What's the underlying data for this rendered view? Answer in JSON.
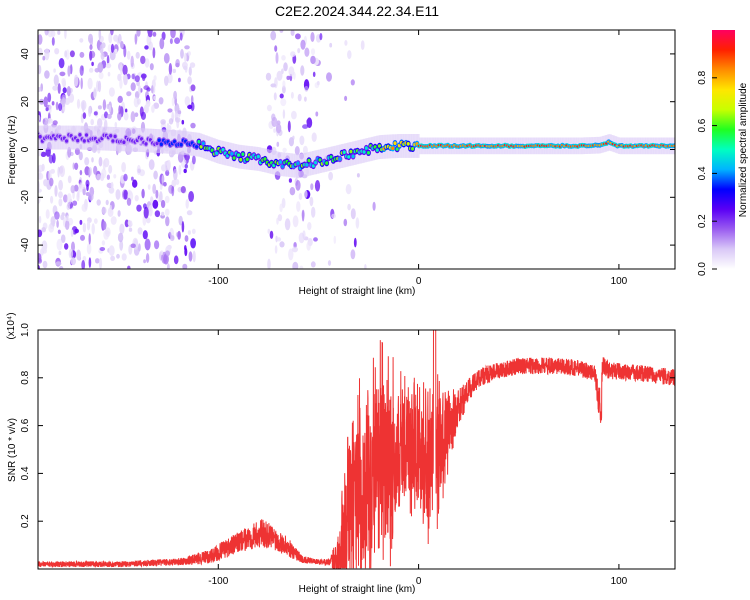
{
  "title": "C2E2.2024.344.22.34.E11",
  "chart_data": [
    {
      "type": "heatmap",
      "xlabel": "Height of straight line (km)",
      "ylabel": "Frequency (Hz)",
      "xlim": [
        -190,
        128
      ],
      "ylim": [
        -50,
        50
      ],
      "xticks": [
        -100,
        0,
        100
      ],
      "yticks": [
        -40,
        -20,
        0,
        20,
        40
      ],
      "grid": false,
      "colorbar": {
        "label": "Normalized spectral amplitude",
        "range": [
          0,
          1
        ],
        "ticks": [
          0.0,
          0.2,
          0.4,
          0.6,
          0.8
        ],
        "colors": [
          "#ffffff",
          "#d9c8f7",
          "#9a5cf0",
          "#5a00f5",
          "#0000ff",
          "#00b4ff",
          "#00ffc0",
          "#20ff20",
          "#c8ff00",
          "#ffe600",
          "#ff8c00",
          "#ff2000",
          "#ff0060"
        ]
      },
      "ridge": [
        [
          -170,
          5
        ],
        [
          -140,
          4
        ],
        [
          -120,
          3
        ],
        [
          -110,
          2
        ],
        [
          -100,
          -1
        ],
        [
          -90,
          -3
        ],
        [
          -80,
          -4
        ],
        [
          -70,
          -6
        ],
        [
          -60,
          -7
        ],
        [
          -50,
          -5
        ],
        [
          -45,
          -4
        ],
        [
          -40,
          -3
        ],
        [
          -35,
          -2
        ],
        [
          -25,
          0
        ],
        [
          -20,
          1
        ],
        [
          -10,
          1.5
        ],
        [
          0,
          1.5
        ],
        [
          20,
          1.5
        ],
        [
          50,
          1.5
        ],
        [
          80,
          1.5
        ],
        [
          90,
          1.8
        ],
        [
          95,
          3
        ],
        [
          100,
          1.5
        ],
        [
          128,
          1.5
        ]
      ]
    },
    {
      "type": "line",
      "xlabel": "Height of straight line (km)",
      "ylabel": "SNR (10 * v/v)",
      "yscale_label": "(x10⁴)",
      "xlim": [
        -190,
        128
      ],
      "ylim": [
        0,
        1.0
      ],
      "xticks": [
        -100,
        0,
        100
      ],
      "yticks": [
        0.2,
        0.4,
        0.6,
        0.8,
        1.0
      ],
      "series": [
        {
          "name": "SNR",
          "color": "#ee3333",
          "x": [
            -190,
            -150,
            -120,
            -105,
            -95,
            -85,
            -78,
            -72,
            -65,
            -58,
            -50,
            -44,
            -40,
            -37,
            -34,
            -30,
            -25,
            -20,
            -15,
            -10,
            -5,
            0,
            5,
            10,
            15,
            20,
            25,
            30,
            40,
            50,
            60,
            70,
            80,
            88,
            90,
            92,
            95,
            110,
            128
          ],
          "base": [
            0.02,
            0.02,
            0.03,
            0.05,
            0.09,
            0.13,
            0.15,
            0.13,
            0.09,
            0.04,
            0.03,
            0.03,
            0.06,
            0.15,
            0.25,
            0.32,
            0.38,
            0.42,
            0.46,
            0.5,
            0.52,
            0.48,
            0.42,
            0.5,
            0.6,
            0.67,
            0.75,
            0.8,
            0.83,
            0.85,
            0.85,
            0.85,
            0.84,
            0.82,
            0.7,
            0.85,
            0.83,
            0.82,
            0.8
          ],
          "amp": [
            0.012,
            0.012,
            0.015,
            0.03,
            0.04,
            0.05,
            0.06,
            0.05,
            0.04,
            0.015,
            0.01,
            0.015,
            0.12,
            0.2,
            0.26,
            0.3,
            0.34,
            0.34,
            0.3,
            0.24,
            0.2,
            0.2,
            0.22,
            0.22,
            0.12,
            0.08,
            0.05,
            0.04,
            0.035,
            0.035,
            0.035,
            0.035,
            0.035,
            0.035,
            0.07,
            0.04,
            0.035,
            0.035,
            0.035
          ]
        }
      ]
    }
  ]
}
